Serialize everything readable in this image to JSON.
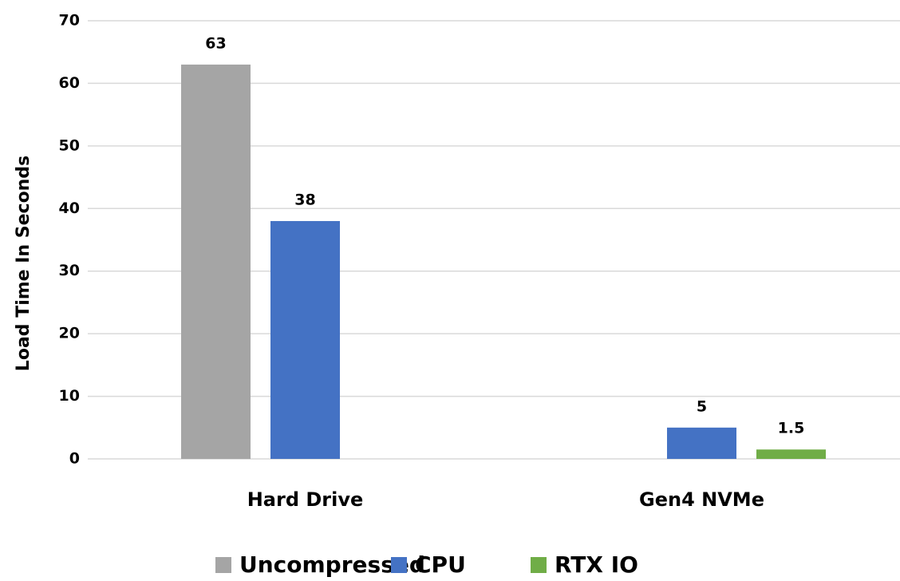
{
  "chart_data": {
    "type": "bar",
    "y_label": "Load Time In Seconds",
    "categories": [
      "Hard Drive",
      "Gen4 NVMe"
    ],
    "series": [
      {
        "name": "Uncompressed",
        "color": "#a5a5a5",
        "values": [
          63,
          null
        ]
      },
      {
        "name": "CPU",
        "color": "#4472c4",
        "values": [
          38,
          5
        ]
      },
      {
        "name": "RTX IO",
        "color": "#70ad47",
        "values": [
          null,
          1.5
        ]
      }
    ],
    "ylim": [
      0,
      70
    ],
    "yticks": [
      0,
      10,
      20,
      30,
      40,
      50,
      60,
      70
    ],
    "grid": true,
    "legend": "bottom"
  }
}
